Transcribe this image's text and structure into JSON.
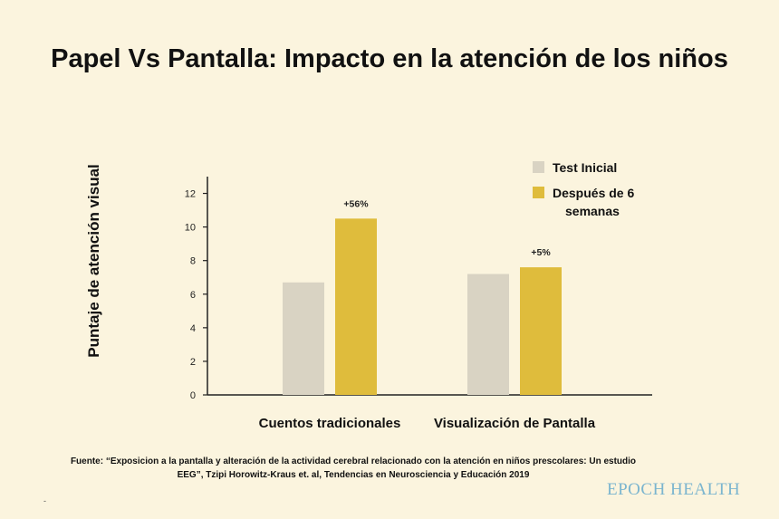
{
  "title": "Papel Vs Pantalla: Impacto en la atención de los niños",
  "source": "Fuente: “Exposicion a la pantalla y alteración de la actividad cerebral relacionado con la atención en niños prescolares: Un estudio EEG”, Tzipi Horowitz-Kraus et. al, Tendencias en Neurosciencia y Educación 2019",
  "brand": "EPOCH HEALTH",
  "footer_mark": "-",
  "chart_data": {
    "type": "bar",
    "title": "Papel Vs Pantalla: Impacto en la atención de los niños",
    "ylabel": "Puntaje de atención visual",
    "xlabel": "",
    "categories": [
      "Cuentos tradicionales",
      "Visualización de Pantalla"
    ],
    "series": [
      {
        "name": "Test Inicial",
        "color": "#d9d3c3",
        "values": [
          6.7,
          7.2
        ]
      },
      {
        "name": "Después de 6 semanas",
        "color": "#dfbc3c",
        "values": [
          10.5,
          7.6
        ]
      }
    ],
    "annotations": [
      "+56%",
      "+5%"
    ],
    "ylim": [
      0,
      13
    ],
    "yticks": [
      0,
      2,
      4,
      6,
      8,
      10,
      12
    ],
    "grid": false,
    "legend_position": "top-right"
  }
}
